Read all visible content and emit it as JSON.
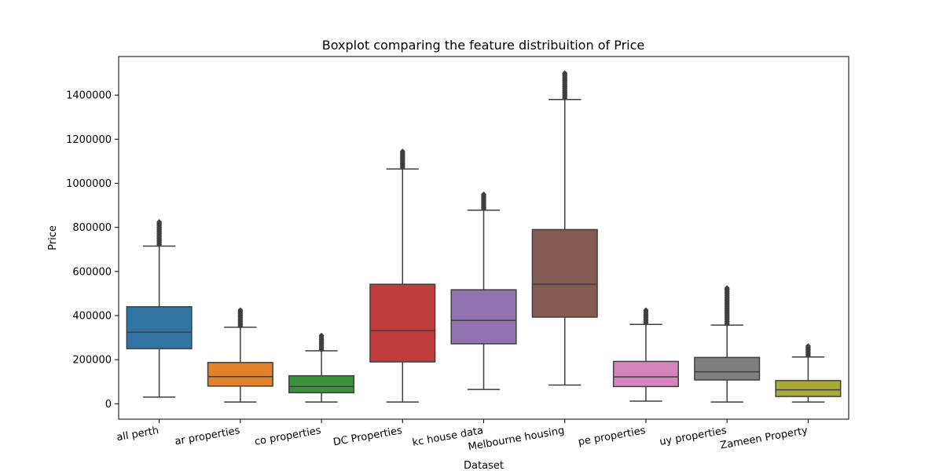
{
  "chart_data": {
    "type": "box",
    "title": "Boxplot comparing the feature distribuition of Price",
    "xlabel": "Dataset",
    "ylabel": "Price",
    "ylim": [
      -70000,
      1575000
    ],
    "yticks": [
      0,
      200000,
      400000,
      600000,
      800000,
      1000000,
      1200000,
      1400000
    ],
    "grid": false,
    "legend": "none",
    "categories": [
      "all perth",
      "ar properties",
      "co properties",
      "DC Properties",
      "kc house data",
      "Melbourne housing",
      "pe properties",
      "uy properties",
      "Zameen Property"
    ],
    "colors": [
      "#3274a1",
      "#e1812c",
      "#3a923a",
      "#c03d3e",
      "#9372b2",
      "#845b53",
      "#d684bd",
      "#7f7f7f",
      "#a9aa35"
    ],
    "boxes": [
      {
        "whislo": 30000,
        "q1": 250000,
        "median": 325000,
        "q3": 440000,
        "whishi": 715000,
        "fliers_from": 722000,
        "fliers_to": 825000
      },
      {
        "whislo": 8000,
        "q1": 80000,
        "median": 123000,
        "q3": 187000,
        "whishi": 347000,
        "fliers_from": 352000,
        "fliers_to": 425000
      },
      {
        "whislo": 8000,
        "q1": 50000,
        "median": 78000,
        "q3": 127000,
        "whishi": 240000,
        "fliers_from": 245000,
        "fliers_to": 310000
      },
      {
        "whislo": 8000,
        "q1": 190000,
        "median": 332000,
        "q3": 542000,
        "whishi": 1065000,
        "fliers_from": 1072000,
        "fliers_to": 1145000
      },
      {
        "whislo": 65000,
        "q1": 272000,
        "median": 378000,
        "q3": 517000,
        "whishi": 878000,
        "fliers_from": 884000,
        "fliers_to": 950000
      },
      {
        "whislo": 85000,
        "q1": 393000,
        "median": 542000,
        "q3": 790000,
        "whishi": 1380000,
        "fliers_from": 1386000,
        "fliers_to": 1500000
      },
      {
        "whislo": 12000,
        "q1": 78000,
        "median": 122000,
        "q3": 192000,
        "whishi": 360000,
        "fliers_from": 366000,
        "fliers_to": 425000
      },
      {
        "whislo": 8000,
        "q1": 108000,
        "median": 145000,
        "q3": 210000,
        "whishi": 357000,
        "fliers_from": 362000,
        "fliers_to": 525000
      },
      {
        "whislo": 8000,
        "q1": 33000,
        "median": 63000,
        "q3": 105000,
        "whishi": 212000,
        "fliers_from": 218000,
        "fliers_to": 262000
      }
    ]
  }
}
